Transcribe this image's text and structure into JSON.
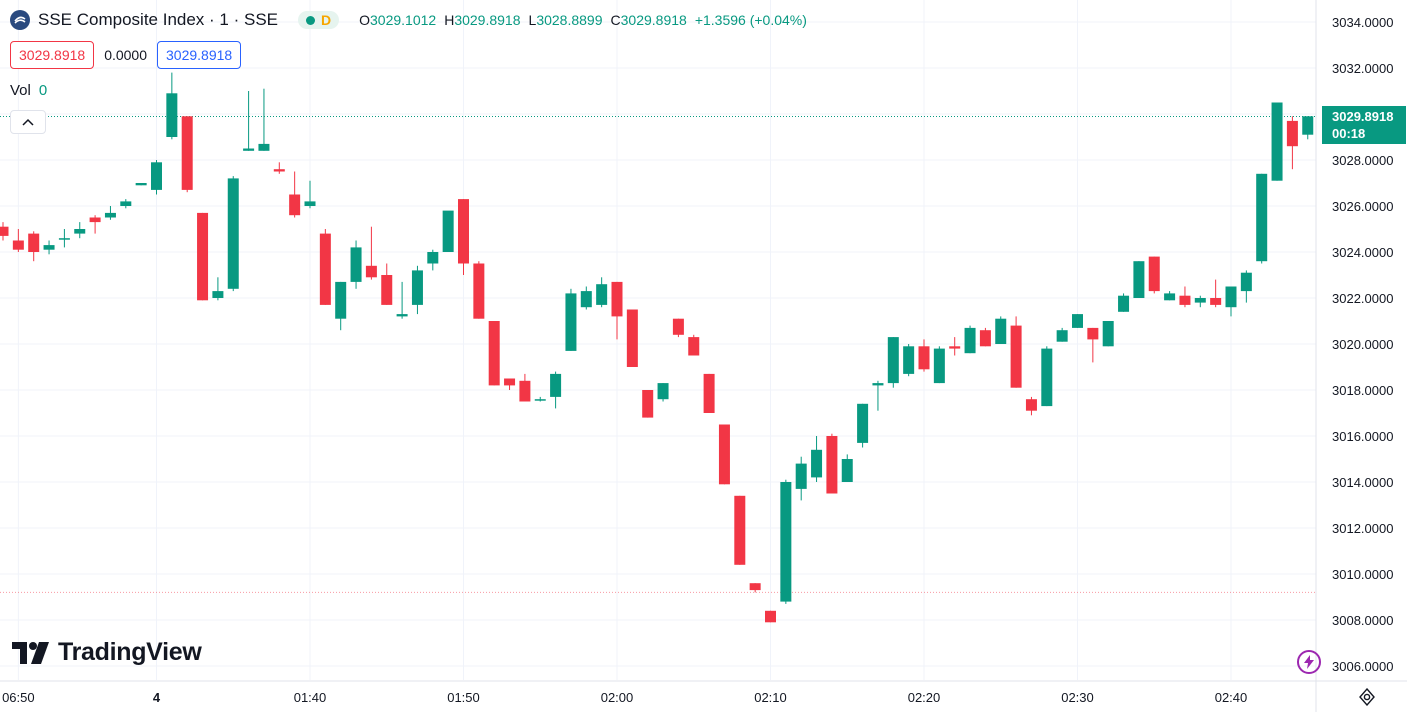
{
  "header": {
    "title": "SSE Composite Index · 1 · SSE",
    "status_badge": "D",
    "ohlc": [
      {
        "key": "O",
        "value": "3029.1012"
      },
      {
        "key": "H",
        "value": "3029.8918"
      },
      {
        "key": "L",
        "value": "3028.8899"
      },
      {
        "key": "C",
        "value": "3029.8918"
      }
    ],
    "change": "+1.3596 (+0.04%)"
  },
  "quote": {
    "bid": "3029.8918",
    "spread": "0.0000",
    "ask": "3029.8918"
  },
  "volume": {
    "label": "Vol",
    "value": "0"
  },
  "last_price_tag": {
    "price": "3029.8918",
    "countdown": "00:18"
  },
  "logo_text": "TradingView",
  "colors": {
    "up": "#089981",
    "down": "#f23645",
    "grid": "#f0f3fa",
    "text": "#131722",
    "accent": "#9c27b0"
  },
  "chart_data": {
    "type": "candlestick",
    "y_axis": {
      "ticks": [
        "3006.0000",
        "3008.0000",
        "3010.0000",
        "3012.0000",
        "3014.0000",
        "3016.0000",
        "3018.0000",
        "3020.0000",
        "3022.0000",
        "3024.0000",
        "3026.0000",
        "3028.0000",
        "3030.0000",
        "3032.0000",
        "3034.0000"
      ],
      "range": [
        3005.3,
        3034.4
      ]
    },
    "x_axis": {
      "labels": [
        {
          "t": 1,
          "label": "06:50"
        },
        {
          "t": 10,
          "label": "4"
        },
        {
          "t": 20,
          "label": "01:40"
        },
        {
          "t": 30,
          "label": "01:50"
        },
        {
          "t": 40,
          "label": "02:00"
        },
        {
          "t": 50,
          "label": "02:10"
        },
        {
          "t": 60,
          "label": "02:20"
        },
        {
          "t": 70,
          "label": "02:30"
        },
        {
          "t": 80,
          "label": "02:40"
        }
      ]
    },
    "reference_level": 3009.2,
    "last_price": 3029.8918,
    "candles": [
      {
        "t": 0,
        "o": 3025.1,
        "h": 3025.3,
        "l": 3024.5,
        "c": 3024.7
      },
      {
        "t": 1,
        "o": 3024.5,
        "h": 3025.0,
        "l": 3024.0,
        "c": 3024.1
      },
      {
        "t": 2,
        "o": 3024.8,
        "h": 3024.9,
        "l": 3023.6,
        "c": 3024.0
      },
      {
        "t": 3,
        "o": 3024.1,
        "h": 3024.5,
        "l": 3023.9,
        "c": 3024.3
      },
      {
        "t": 4,
        "o": 3024.6,
        "h": 3025.0,
        "l": 3024.2,
        "c": 3024.6
      },
      {
        "t": 5,
        "o": 3024.8,
        "h": 3025.3,
        "l": 3024.6,
        "c": 3025.0
      },
      {
        "t": 6,
        "o": 3025.5,
        "h": 3025.6,
        "l": 3024.8,
        "c": 3025.3
      },
      {
        "t": 7,
        "o": 3025.5,
        "h": 3026.0,
        "l": 3025.4,
        "c": 3025.7
      },
      {
        "t": 8,
        "o": 3026.0,
        "h": 3026.3,
        "l": 3025.9,
        "c": 3026.2
      },
      {
        "t": 9,
        "o": 3026.9,
        "h": 3027.0,
        "l": 3026.9,
        "c": 3027.0
      },
      {
        "t": 10,
        "o": 3026.7,
        "h": 3028.0,
        "l": 3026.5,
        "c": 3027.9
      },
      {
        "t": 11,
        "o": 3029.0,
        "h": 3031.8,
        "l": 3028.9,
        "c": 3030.9
      },
      {
        "t": 12,
        "o": 3029.9,
        "h": 3029.9,
        "l": 3026.6,
        "c": 3026.7
      },
      {
        "t": 13,
        "o": 3025.7,
        "h": 3025.7,
        "l": 3021.9,
        "c": 3021.9
      },
      {
        "t": 14,
        "o": 3022.0,
        "h": 3022.9,
        "l": 3021.9,
        "c": 3022.3
      },
      {
        "t": 15,
        "o": 3022.4,
        "h": 3027.3,
        "l": 3022.3,
        "c": 3027.2
      },
      {
        "t": 16,
        "o": 3028.4,
        "h": 3031.0,
        "l": 3028.4,
        "c": 3028.5
      },
      {
        "t": 17,
        "o": 3028.4,
        "h": 3031.1,
        "l": 3028.4,
        "c": 3028.7
      },
      {
        "t": 18,
        "o": 3027.6,
        "h": 3027.9,
        "l": 3027.4,
        "c": 3027.5
      },
      {
        "t": 19,
        "o": 3026.5,
        "h": 3027.5,
        "l": 3025.5,
        "c": 3025.6
      },
      {
        "t": 20,
        "o": 3026.0,
        "h": 3027.1,
        "l": 3025.9,
        "c": 3026.2
      },
      {
        "t": 21,
        "o": 3024.8,
        "h": 3025.0,
        "l": 3021.7,
        "c": 3021.7
      },
      {
        "t": 22,
        "o": 3021.1,
        "h": 3022.7,
        "l": 3020.6,
        "c": 3022.7
      },
      {
        "t": 23,
        "o": 3022.7,
        "h": 3024.5,
        "l": 3022.4,
        "c": 3024.2
      },
      {
        "t": 24,
        "o": 3023.4,
        "h": 3025.1,
        "l": 3022.8,
        "c": 3022.9
      },
      {
        "t": 25,
        "o": 3023.0,
        "h": 3023.5,
        "l": 3021.7,
        "c": 3021.7
      },
      {
        "t": 26,
        "o": 3021.2,
        "h": 3022.7,
        "l": 3021.1,
        "c": 3021.3
      },
      {
        "t": 27,
        "o": 3021.7,
        "h": 3023.4,
        "l": 3021.3,
        "c": 3023.2
      },
      {
        "t": 28,
        "o": 3023.5,
        "h": 3024.1,
        "l": 3023.2,
        "c": 3024.0
      },
      {
        "t": 29,
        "o": 3024.0,
        "h": 3025.7,
        "l": 3024.0,
        "c": 3025.8
      },
      {
        "t": 30,
        "o": 3026.3,
        "h": 3026.3,
        "l": 3023.0,
        "c": 3023.5
      },
      {
        "t": 31,
        "o": 3023.5,
        "h": 3023.6,
        "l": 3021.1,
        "c": 3021.1
      },
      {
        "t": 32,
        "o": 3021.0,
        "h": 3021.0,
        "l": 3018.2,
        "c": 3018.2
      },
      {
        "t": 33,
        "o": 3018.5,
        "h": 3018.5,
        "l": 3018.0,
        "c": 3018.2
      },
      {
        "t": 34,
        "o": 3018.4,
        "h": 3018.7,
        "l": 3017.5,
        "c": 3017.5
      },
      {
        "t": 35,
        "o": 3017.6,
        "h": 3017.7,
        "l": 3017.5,
        "c": 3017.6
      },
      {
        "t": 36,
        "o": 3017.7,
        "h": 3018.8,
        "l": 3017.2,
        "c": 3018.7
      },
      {
        "t": 37,
        "o": 3019.7,
        "h": 3022.4,
        "l": 3019.7,
        "c": 3022.2
      },
      {
        "t": 38,
        "o": 3021.6,
        "h": 3022.5,
        "l": 3021.5,
        "c": 3022.3
      },
      {
        "t": 39,
        "o": 3021.7,
        "h": 3022.9,
        "l": 3021.6,
        "c": 3022.6
      },
      {
        "t": 40,
        "o": 3022.7,
        "h": 3022.7,
        "l": 3020.2,
        "c": 3021.2
      },
      {
        "t": 41,
        "o": 3021.5,
        "h": 3021.5,
        "l": 3019.0,
        "c": 3019.0
      },
      {
        "t": 42,
        "o": 3018.0,
        "h": 3018.0,
        "l": 3016.8,
        "c": 3016.8
      },
      {
        "t": 43,
        "o": 3017.6,
        "h": 3018.3,
        "l": 3017.5,
        "c": 3018.3
      },
      {
        "t": 44,
        "o": 3021.1,
        "h": 3021.1,
        "l": 3020.3,
        "c": 3020.4
      },
      {
        "t": 45,
        "o": 3020.3,
        "h": 3020.4,
        "l": 3019.5,
        "c": 3019.5
      },
      {
        "t": 46,
        "o": 3018.7,
        "h": 3018.7,
        "l": 3017.0,
        "c": 3017.0
      },
      {
        "t": 47,
        "o": 3016.5,
        "h": 3016.5,
        "l": 3013.9,
        "c": 3013.9
      },
      {
        "t": 48,
        "o": 3013.4,
        "h": 3013.4,
        "l": 3010.4,
        "c": 3010.4
      },
      {
        "t": 49,
        "o": 3009.6,
        "h": 3009.6,
        "l": 3009.2,
        "c": 3009.3
      },
      {
        "t": 50,
        "o": 3008.4,
        "h": 3008.4,
        "l": 3007.9,
        "c": 3007.9
      },
      {
        "t": 51,
        "o": 3008.8,
        "h": 3014.1,
        "l": 3008.7,
        "c": 3014.0
      },
      {
        "t": 52,
        "o": 3013.7,
        "h": 3015.1,
        "l": 3013.2,
        "c": 3014.8
      },
      {
        "t": 53,
        "o": 3014.2,
        "h": 3016.0,
        "l": 3014.0,
        "c": 3015.4
      },
      {
        "t": 54,
        "o": 3016.0,
        "h": 3016.1,
        "l": 3013.5,
        "c": 3013.5
      },
      {
        "t": 55,
        "o": 3014.0,
        "h": 3015.2,
        "l": 3014.0,
        "c": 3015.0
      },
      {
        "t": 56,
        "o": 3015.7,
        "h": 3017.4,
        "l": 3015.5,
        "c": 3017.4
      },
      {
        "t": 57,
        "o": 3018.2,
        "h": 3018.4,
        "l": 3017.1,
        "c": 3018.3
      },
      {
        "t": 58,
        "o": 3018.3,
        "h": 3020.3,
        "l": 3018.1,
        "c": 3020.3
      },
      {
        "t": 59,
        "o": 3018.7,
        "h": 3020.0,
        "l": 3018.6,
        "c": 3019.9
      },
      {
        "t": 60,
        "o": 3019.9,
        "h": 3020.2,
        "l": 3018.8,
        "c": 3018.9
      },
      {
        "t": 61,
        "o": 3018.3,
        "h": 3019.9,
        "l": 3018.3,
        "c": 3019.8
      },
      {
        "t": 62,
        "o": 3019.9,
        "h": 3020.3,
        "l": 3019.5,
        "c": 3019.8
      },
      {
        "t": 63,
        "o": 3019.6,
        "h": 3020.8,
        "l": 3019.6,
        "c": 3020.7
      },
      {
        "t": 64,
        "o": 3020.6,
        "h": 3020.7,
        "l": 3019.9,
        "c": 3019.9
      },
      {
        "t": 65,
        "o": 3020.0,
        "h": 3021.2,
        "l": 3020.0,
        "c": 3021.1
      },
      {
        "t": 66,
        "o": 3020.8,
        "h": 3021.2,
        "l": 3018.1,
        "c": 3018.1
      },
      {
        "t": 67,
        "o": 3017.6,
        "h": 3017.7,
        "l": 3016.9,
        "c": 3017.1
      },
      {
        "t": 68,
        "o": 3017.3,
        "h": 3019.9,
        "l": 3017.3,
        "c": 3019.8
      },
      {
        "t": 69,
        "o": 3020.1,
        "h": 3020.7,
        "l": 3020.1,
        "c": 3020.6
      },
      {
        "t": 70,
        "o": 3020.7,
        "h": 3021.3,
        "l": 3020.7,
        "c": 3021.3
      },
      {
        "t": 71,
        "o": 3020.7,
        "h": 3020.7,
        "l": 3019.2,
        "c": 3020.2
      },
      {
        "t": 72,
        "o": 3019.9,
        "h": 3021.0,
        "l": 3019.9,
        "c": 3021.0
      },
      {
        "t": 73,
        "o": 3021.4,
        "h": 3022.2,
        "l": 3021.4,
        "c": 3022.1
      },
      {
        "t": 74,
        "o": 3022.0,
        "h": 3023.6,
        "l": 3022.0,
        "c": 3023.6
      },
      {
        "t": 75,
        "o": 3023.8,
        "h": 3023.8,
        "l": 3022.2,
        "c": 3022.3
      },
      {
        "t": 76,
        "o": 3021.9,
        "h": 3022.3,
        "l": 3021.9,
        "c": 3022.2
      },
      {
        "t": 77,
        "o": 3022.1,
        "h": 3022.5,
        "l": 3021.6,
        "c": 3021.7
      },
      {
        "t": 78,
        "o": 3021.8,
        "h": 3022.1,
        "l": 3021.6,
        "c": 3022.0
      },
      {
        "t": 79,
        "o": 3022.0,
        "h": 3022.8,
        "l": 3021.6,
        "c": 3021.7
      },
      {
        "t": 80,
        "o": 3021.6,
        "h": 3022.5,
        "l": 3021.2,
        "c": 3022.5
      },
      {
        "t": 81,
        "o": 3022.3,
        "h": 3023.2,
        "l": 3021.8,
        "c": 3023.1
      },
      {
        "t": 82,
        "o": 3023.6,
        "h": 3027.4,
        "l": 3023.5,
        "c": 3027.4
      },
      {
        "t": 83,
        "o": 3027.1,
        "h": 3030.5,
        "l": 3027.1,
        "c": 3030.5
      },
      {
        "t": 84,
        "o": 3029.7,
        "h": 3029.9,
        "l": 3027.6,
        "c": 3028.6
      },
      {
        "t": 85,
        "o": 3029.1,
        "h": 3029.9,
        "l": 3028.9,
        "c": 3029.9
      }
    ]
  }
}
